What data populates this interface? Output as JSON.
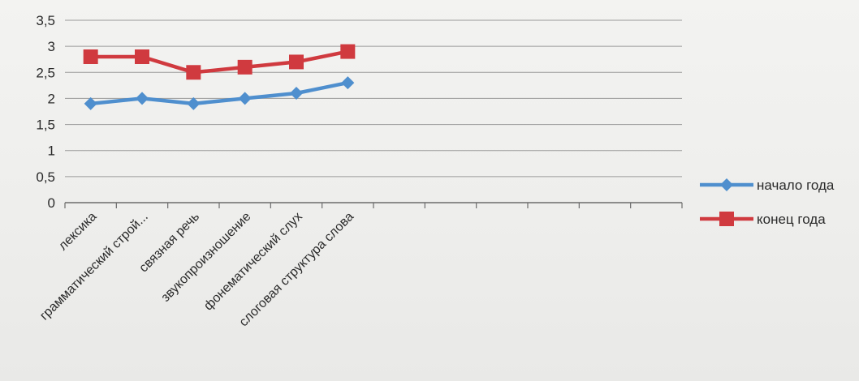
{
  "chart_data": {
    "type": "line",
    "title": "",
    "xlabel": "",
    "ylabel": "",
    "categories": [
      "лексика",
      "грамматический строй...",
      "связная речь",
      "звукопроизношение",
      "фонематический слух",
      "слоговая структура слова"
    ],
    "category_slots": 12,
    "series": [
      {
        "name": "начало года",
        "color": "#4f8fce",
        "marker": "diamond",
        "values": [
          1.9,
          2.0,
          1.9,
          2.0,
          2.1,
          2.3
        ]
      },
      {
        "name": "конец года",
        "color": "#d03a3f",
        "marker": "square",
        "values": [
          2.8,
          2.8,
          2.5,
          2.6,
          2.7,
          2.9
        ]
      }
    ],
    "ylim": [
      0,
      3.5
    ],
    "y_ticks": [
      0,
      0.5,
      1,
      1.5,
      2,
      2.5,
      3,
      3.5
    ],
    "y_tick_labels": [
      "0",
      "0,5",
      "1",
      "1,5",
      "2",
      "2,5",
      "3",
      "3,5"
    ],
    "grid": true,
    "legend_position": "right"
  }
}
